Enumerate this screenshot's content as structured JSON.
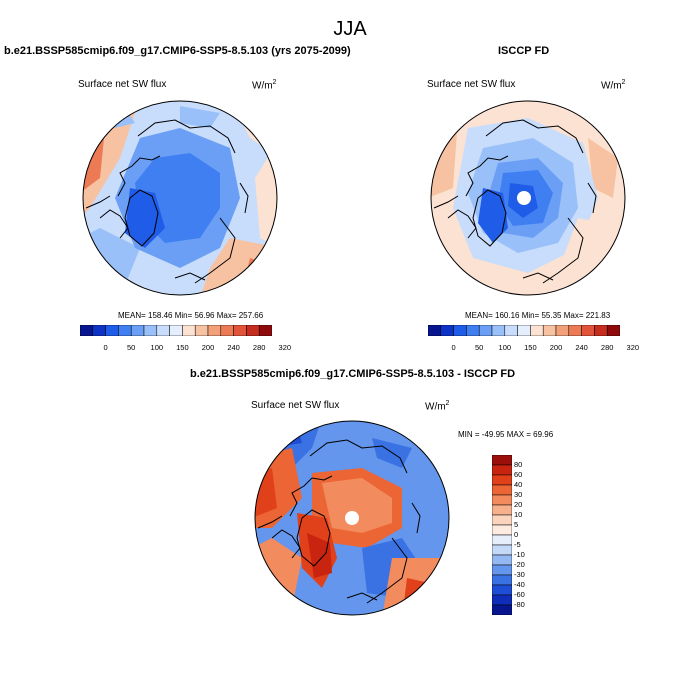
{
  "season": "JJA",
  "panels": [
    {
      "id": "model",
      "title": "b.e21.BSSP585cmip6.f09_g17.CMIP6-SSP5-8.5.103 (yrs 2075-2099)",
      "variable": "Surface net SW flux",
      "units_base": "W/m",
      "units_exp": "2",
      "stats": "MEAN= 158.46   Min=  56.96   Max= 257.66"
    },
    {
      "id": "obs",
      "title": "ISCCP FD",
      "variable": "Surface net SW flux",
      "units_base": "W/m",
      "units_exp": "2",
      "stats": "MEAN= 160.16   Min=  55.35   Max= 221.83"
    },
    {
      "id": "diff",
      "title": "b.e21.BSSP585cmip6.f09_g17.CMIP6-SSP5-8.5.103 - ISCCP FD",
      "variable": "Surface net SW flux",
      "units_base": "W/m",
      "units_exp": "2",
      "stats": "MIN = -49.95  MAX =  69.96"
    }
  ],
  "colorbar_abs": {
    "labels": [
      "0",
      "50",
      "100",
      "150",
      "200",
      "240",
      "280",
      "320"
    ],
    "colors": [
      "#07168f",
      "#0c32c6",
      "#1f5ce8",
      "#3f7ff2",
      "#6a9ff5",
      "#99c0f8",
      "#c8dcfb",
      "#e5eefc",
      "#fbe2d2",
      "#f7c2a2",
      "#f2a07a",
      "#ec7b55",
      "#e2543a",
      "#c72d1f",
      "#8f0a0a"
    ]
  },
  "colorbar_diff": {
    "labels": [
      "80",
      "60",
      "40",
      "30",
      "20",
      "10",
      "5",
      "0",
      "-5",
      "-10",
      "-20",
      "-30",
      "-40",
      "-60",
      "-80"
    ],
    "colors": [
      "#9a0f0a",
      "#c9240f",
      "#e0401a",
      "#ec6535",
      "#f28b5e",
      "#f6b08c",
      "#fbd4bd",
      "#fdebe0",
      "#e6eefc",
      "#c4d8f7",
      "#94b9f2",
      "#6396ec",
      "#3a71e3",
      "#1f4dd6",
      "#0f2db8",
      "#07168f"
    ]
  }
}
